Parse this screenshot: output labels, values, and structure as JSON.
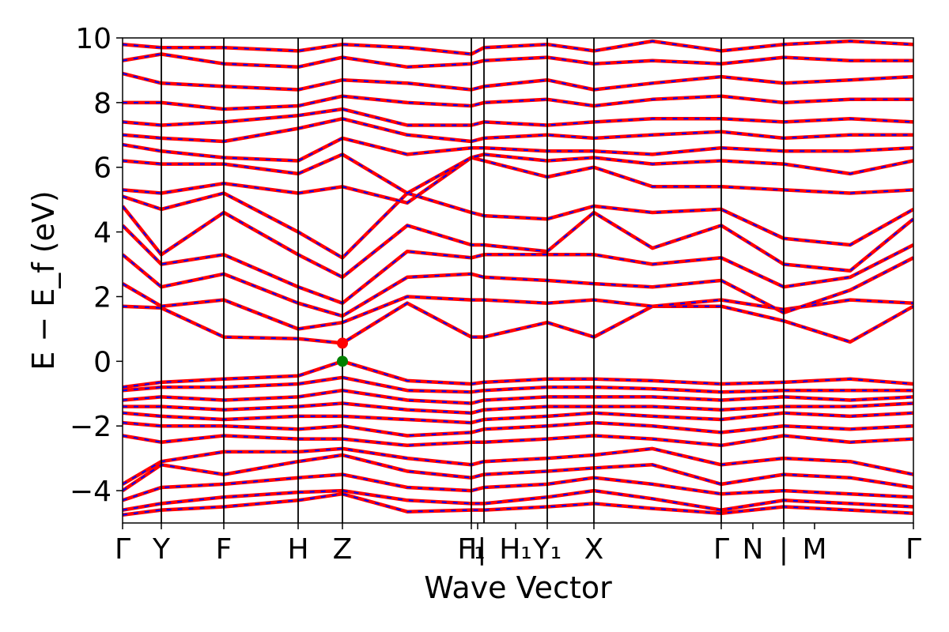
{
  "chart_data": {
    "type": "line",
    "title": "",
    "xlabel": "Wave Vector",
    "ylabel": "E − E_f (eV)",
    "ylim": [
      -5,
      10
    ],
    "yticks": [
      -4,
      -2,
      0,
      2,
      4,
      6,
      8,
      10
    ],
    "grid": false,
    "xlim": [
      0,
      1
    ],
    "kpoint_labels": [
      {
        "label": "Γ",
        "x": 0.0
      },
      {
        "label": "Y",
        "x": 0.049
      },
      {
        "label": "F",
        "x": 0.128
      },
      {
        "label": "H",
        "x": 0.222
      },
      {
        "label": "Z",
        "x": 0.278
      },
      {
        "label": "F₁",
        "x": 0.441
      },
      {
        "label": "I|",
        "x": 0.449
      },
      {
        "label": "H₁",
        "x": 0.497
      },
      {
        "label": "Y₁",
        "x": 0.537
      },
      {
        "label": "X",
        "x": 0.596
      },
      {
        "label": "Γ",
        "x": 0.757
      },
      {
        "label": "N",
        "x": 0.797
      },
      {
        "label": "|",
        "x": 0.836
      },
      {
        "label": "M",
        "x": 0.875
      },
      {
        "label": "Γ",
        "x": 1.0
      }
    ],
    "segment_lines": [
      0.049,
      0.128,
      0.222,
      0.278,
      0.441,
      0.457,
      0.537,
      0.596,
      0.757,
      0.836
    ],
    "band_style": {
      "outer": "#ff0000",
      "inner": "#0000ff"
    },
    "special_points": [
      {
        "name": "CBM",
        "x": 0.278,
        "y": 0.56,
        "color": "#ff0000"
      },
      {
        "name": "VBM",
        "x": 0.278,
        "y": 0.0,
        "color": "#008000"
      }
    ],
    "kx": [
      0,
      0.049,
      0.128,
      0.222,
      0.278,
      0.36,
      0.441,
      0.457,
      0.537,
      0.596,
      0.67,
      0.757,
      0.836,
      0.92,
      1.0
    ],
    "bands": [
      [
        -4.75,
        -4.6,
        -4.5,
        -4.3,
        -4.1,
        -4.65,
        -4.6,
        -4.6,
        -4.5,
        -4.4,
        -4.55,
        -4.7,
        -4.5,
        -4.6,
        -4.7
      ],
      [
        -4.6,
        -4.4,
        -4.2,
        -4.05,
        -4.0,
        -4.3,
        -4.4,
        -4.4,
        -4.2,
        -4.0,
        -4.25,
        -4.6,
        -4.3,
        -4.4,
        -4.5
      ],
      [
        -4.3,
        -3.9,
        -3.8,
        -3.6,
        -3.5,
        -3.9,
        -4.0,
        -3.9,
        -3.8,
        -3.6,
        -3.8,
        -4.1,
        -4.0,
        -4.1,
        -4.2
      ],
      [
        -4.0,
        -3.2,
        -3.5,
        -3.1,
        -2.9,
        -3.4,
        -3.6,
        -3.5,
        -3.4,
        -3.3,
        -3.2,
        -3.8,
        -3.5,
        -3.6,
        -3.9
      ],
      [
        -3.8,
        -3.1,
        -2.8,
        -2.8,
        -2.7,
        -3.0,
        -3.2,
        -3.1,
        -3.0,
        -2.9,
        -2.7,
        -3.2,
        -3.0,
        -3.1,
        -3.5
      ],
      [
        -2.3,
        -2.5,
        -2.3,
        -2.4,
        -2.4,
        -2.6,
        -2.5,
        -2.5,
        -2.4,
        -2.3,
        -2.4,
        -2.6,
        -2.3,
        -2.5,
        -2.4
      ],
      [
        -1.9,
        -2.0,
        -2.0,
        -2.1,
        -2.0,
        -2.3,
        -2.2,
        -2.1,
        -2.0,
        -1.9,
        -2.0,
        -2.2,
        -2.0,
        -2.1,
        -2.0
      ],
      [
        -1.6,
        -1.7,
        -1.8,
        -1.7,
        -1.7,
        -1.8,
        -1.9,
        -1.8,
        -1.7,
        -1.6,
        -1.7,
        -1.8,
        -1.6,
        -1.7,
        -1.6
      ],
      [
        -1.4,
        -1.4,
        -1.5,
        -1.4,
        -1.3,
        -1.5,
        -1.6,
        -1.5,
        -1.4,
        -1.4,
        -1.4,
        -1.5,
        -1.4,
        -1.4,
        -1.3
      ],
      [
        -1.2,
        -1.1,
        -1.2,
        -1.1,
        -0.9,
        -1.2,
        -1.3,
        -1.2,
        -1.1,
        -1.1,
        -1.1,
        -1.2,
        -1.1,
        -1.2,
        -1.1
      ],
      [
        -0.9,
        -0.8,
        -0.8,
        -0.7,
        -0.5,
        -0.9,
        -0.95,
        -0.9,
        -0.8,
        -0.8,
        -0.85,
        -0.95,
        -0.9,
        -0.9,
        -0.9
      ],
      [
        -0.8,
        -0.65,
        -0.55,
        -0.45,
        0.0,
        -0.6,
        -0.7,
        -0.65,
        -0.55,
        -0.55,
        -0.6,
        -0.7,
        -0.65,
        -0.55,
        -0.7
      ],
      [
        1.7,
        1.65,
        0.75,
        0.7,
        0.56,
        1.8,
        0.75,
        0.75,
        1.2,
        0.75,
        1.7,
        1.7,
        1.25,
        0.6,
        1.7
      ],
      [
        2.4,
        1.7,
        1.9,
        1.0,
        1.2,
        2.0,
        1.9,
        1.9,
        1.8,
        1.9,
        1.7,
        1.9,
        1.6,
        1.9,
        1.8
      ],
      [
        3.3,
        2.3,
        2.7,
        1.8,
        1.4,
        2.6,
        2.7,
        2.6,
        2.5,
        2.4,
        2.3,
        2.5,
        1.5,
        2.2,
        3.2
      ],
      [
        4.2,
        3.0,
        3.3,
        2.3,
        1.8,
        3.4,
        3.2,
        3.3,
        3.3,
        3.3,
        3.0,
        3.2,
        2.3,
        2.6,
        3.6
      ],
      [
        4.8,
        3.3,
        4.6,
        3.3,
        2.6,
        4.2,
        3.6,
        3.6,
        3.4,
        4.6,
        3.5,
        4.2,
        3.0,
        2.8,
        4.4
      ],
      [
        5.1,
        4.7,
        5.2,
        4.0,
        3.2,
        5.2,
        4.6,
        4.5,
        4.4,
        4.8,
        4.6,
        4.7,
        3.8,
        3.6,
        4.7
      ],
      [
        5.3,
        5.2,
        5.5,
        5.2,
        5.4,
        4.9,
        6.3,
        6.2,
        5.7,
        6.0,
        5.4,
        5.4,
        5.3,
        5.2,
        5.3
      ],
      [
        6.2,
        6.1,
        6.1,
        5.8,
        6.4,
        5.2,
        6.3,
        6.4,
        6.2,
        6.3,
        6.1,
        6.2,
        6.1,
        5.8,
        6.2
      ],
      [
        6.7,
        6.5,
        6.3,
        6.2,
        6.9,
        6.4,
        6.6,
        6.6,
        6.5,
        6.5,
        6.4,
        6.6,
        6.5,
        6.5,
        6.6
      ],
      [
        7.0,
        6.9,
        6.8,
        7.2,
        7.5,
        7.0,
        6.8,
        6.9,
        7.0,
        6.9,
        7.0,
        7.1,
        6.9,
        7.0,
        7.0
      ],
      [
        7.4,
        7.3,
        7.4,
        7.6,
        7.8,
        7.3,
        7.3,
        7.4,
        7.3,
        7.4,
        7.5,
        7.5,
        7.4,
        7.5,
        7.4
      ],
      [
        8.0,
        8.0,
        7.8,
        7.9,
        8.2,
        8.0,
        7.9,
        8.0,
        8.1,
        7.9,
        8.1,
        8.2,
        8.0,
        8.1,
        8.1
      ],
      [
        8.9,
        8.6,
        8.5,
        8.4,
        8.7,
        8.6,
        8.4,
        8.5,
        8.7,
        8.4,
        8.6,
        8.8,
        8.6,
        8.7,
        8.8
      ],
      [
        9.3,
        9.5,
        9.2,
        9.1,
        9.4,
        9.1,
        9.2,
        9.3,
        9.4,
        9.2,
        9.3,
        9.2,
        9.4,
        9.3,
        9.3
      ],
      [
        9.8,
        9.7,
        9.7,
        9.6,
        9.8,
        9.7,
        9.5,
        9.7,
        9.8,
        9.6,
        9.9,
        9.6,
        9.8,
        9.9,
        9.8
      ]
    ]
  }
}
